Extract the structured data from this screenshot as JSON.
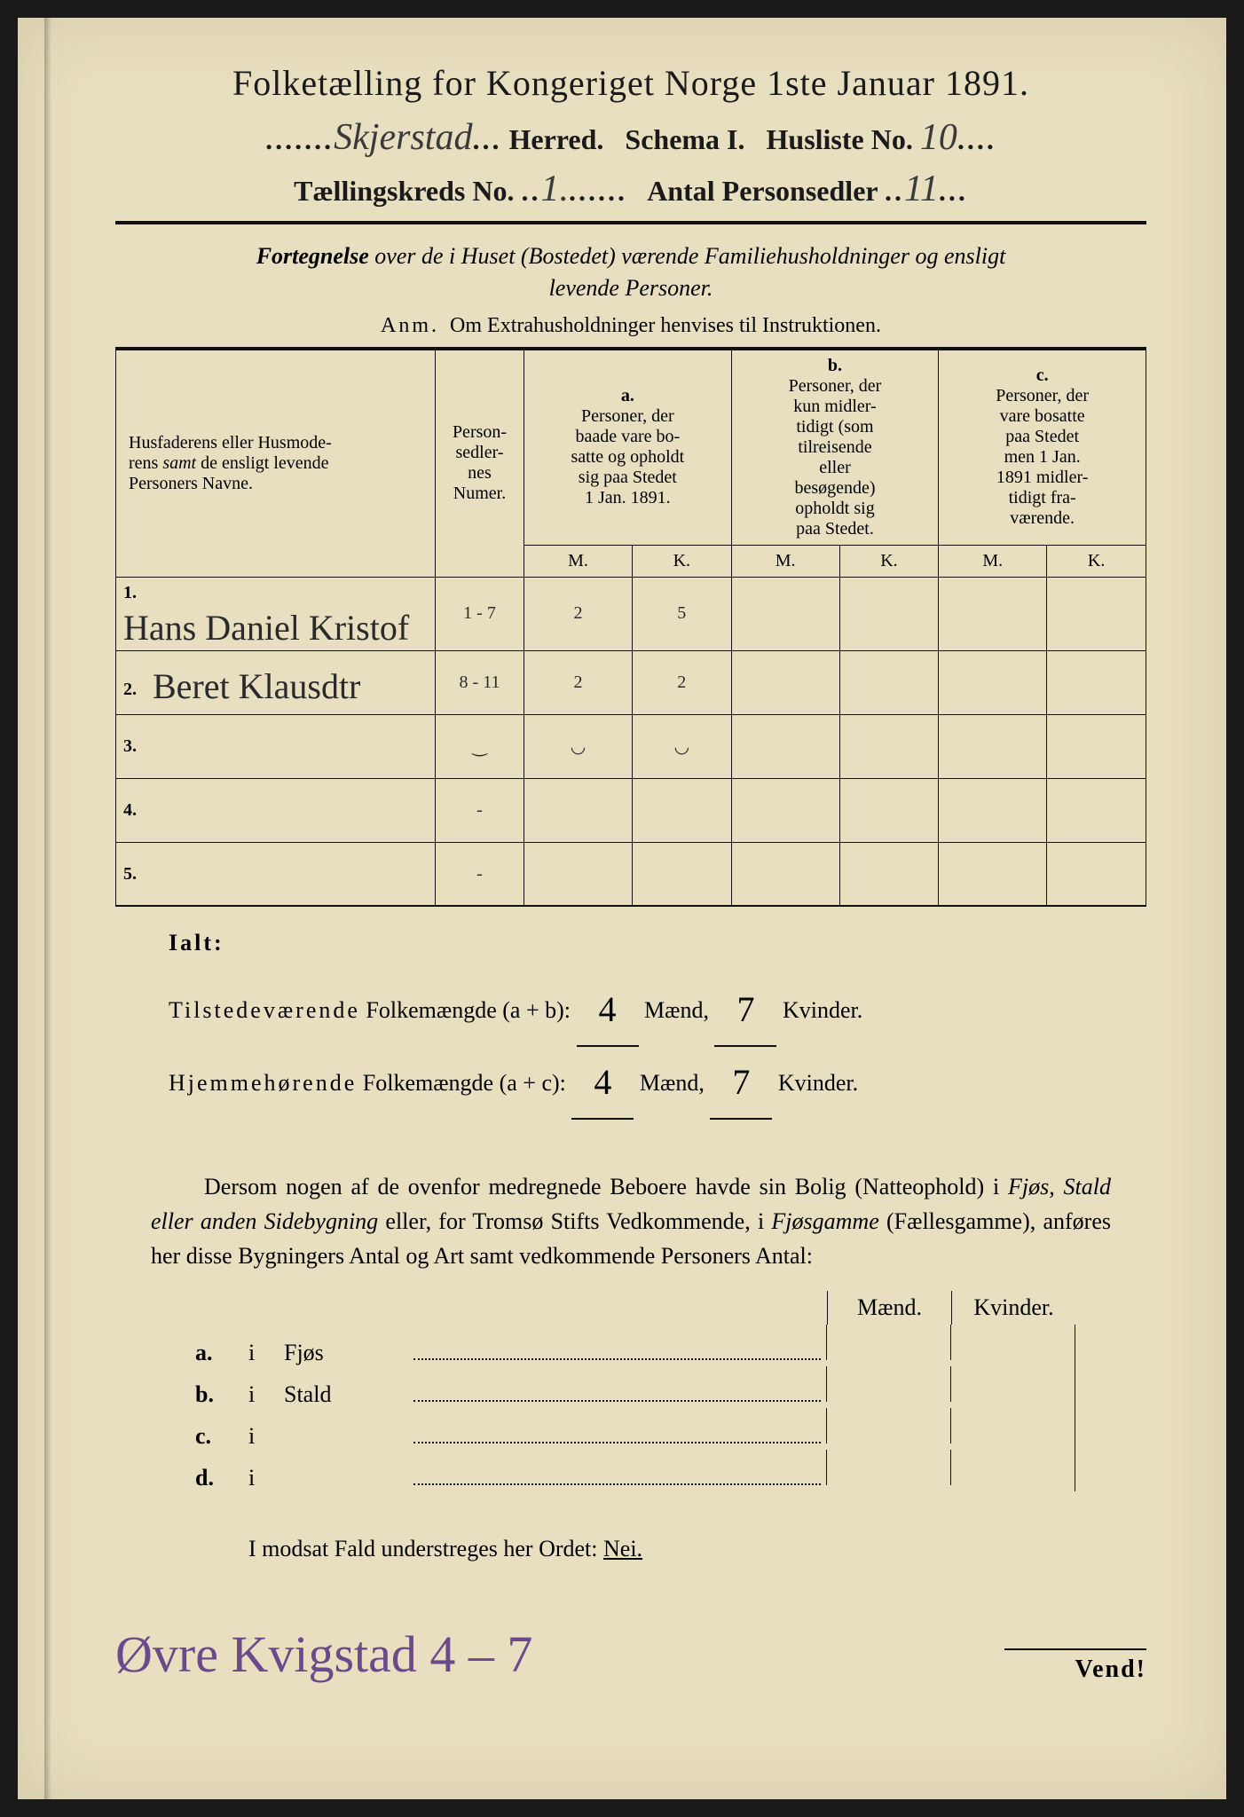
{
  "title": "Folketælling for Kongeriget Norge 1ste Januar 1891.",
  "header": {
    "herred_hw": "Skjerstad",
    "herred_label": "Herred.",
    "schema_label": "Schema I.",
    "husliste_label": "Husliste No.",
    "husliste_hw": "10",
    "kreds_label": "Tællingskreds No.",
    "kreds_hw": "1.",
    "antal_label": "Antal Personsedler",
    "antal_hw": "11"
  },
  "subtitle": "Fortegnelse over de i Huset (Bostedet) værende Familiehusholdninger og ensligt levende Personer.",
  "anm": {
    "lead": "Anm.",
    "text": "Om Extrahusholdninger henvises til Instruktionen."
  },
  "table": {
    "col_names": "Husfaderens eller Husmoderens samt de ensligt levende Personers Navne.",
    "col_numer": "Person-\nsedler-\nnes\nNumer.",
    "col_a_tag": "a.",
    "col_a": "Personer, der baade vare bosatte og opholdt sig paa Stedet 1 Jan. 1891.",
    "col_b_tag": "b.",
    "col_b": "Personer, der kun midlertidigt (som tilreisende eller besøgende) opholdt sig paa Stedet.",
    "col_c_tag": "c.",
    "col_c": "Personer, der vare bosatte paa Stedet men 1 Jan. 1891 midlertidigt fraværende.",
    "mk_m": "M.",
    "mk_k": "K.",
    "rows": [
      {
        "num": "1.",
        "name": "Hans Daniel Kristof",
        "numer": "1 - 7",
        "a_m": "2",
        "a_k": "5",
        "b_m": "",
        "b_k": "",
        "c_m": "",
        "c_k": ""
      },
      {
        "num": "2.",
        "name": "Beret Klausdtr",
        "numer": "8 - 11",
        "a_m": "2",
        "a_k": "2",
        "b_m": "",
        "b_k": "",
        "c_m": "",
        "c_k": ""
      },
      {
        "num": "3.",
        "name": "",
        "numer": "‿",
        "a_m": "◡",
        "a_k": "◡",
        "b_m": "",
        "b_k": "",
        "c_m": "",
        "c_k": ""
      },
      {
        "num": "4.",
        "name": "",
        "numer": "-",
        "a_m": "",
        "a_k": "",
        "b_m": "",
        "b_k": "",
        "c_m": "",
        "c_k": ""
      },
      {
        "num": "5.",
        "name": "",
        "numer": "-",
        "a_m": "",
        "a_k": "",
        "b_m": "",
        "b_k": "",
        "c_m": "",
        "c_k": ""
      }
    ]
  },
  "ialt": "Ialt:",
  "totals": {
    "line1_label": "Tilstedeværende Folkemængde (a + b):",
    "line1_m": "4",
    "line1_k": "7",
    "line2_label": "Hjemmehørende Folkemængde (a + c):",
    "line2_m": "4",
    "line2_k": "7",
    "maend": "Mænd,",
    "kvinder": "Kvinder."
  },
  "para": "Dersom nogen af de ovenfor medregnede Beboere havde sin Bolig (Natteophold) i Fjøs, Stald eller anden Sidebygning eller, for Tromsø Stifts Vedkommende, i Fjøsgamme (Fællesgamme), anføres her disse Bygningers Antal og Art samt vedkommende Personers Antal:",
  "mk_head": {
    "m": "Mænd.",
    "k": "Kvinder."
  },
  "list": [
    {
      "lab": "a.",
      "i": "i",
      "name": "Fjøs"
    },
    {
      "lab": "b.",
      "i": "i",
      "name": "Stald"
    },
    {
      "lab": "c.",
      "i": "i",
      "name": ""
    },
    {
      "lab": "d.",
      "i": "i",
      "name": ""
    }
  ],
  "nei_line": {
    "pre": "I modsat Fald understreges her Ordet:",
    "word": "Nei."
  },
  "bottom": {
    "hw": "Øvre Kvigstad 4 – 7",
    "vend": "Vend!"
  },
  "colors": {
    "paper": "#e8dfc0",
    "ink": "#1a1a1a",
    "handwriting": "#2a2a2a",
    "purple_hw": "#6a4a8a",
    "frame": "#1a1a1a"
  }
}
